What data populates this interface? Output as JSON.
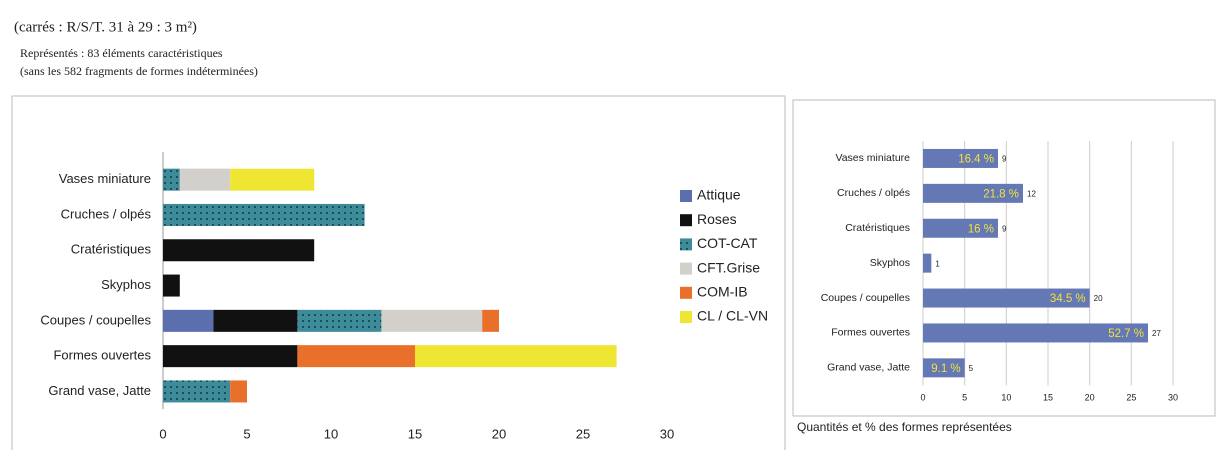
{
  "header": {
    "subtitle": "(carrés : R/S/T. 31 à 29 : 3 m²)",
    "note1": "Représentés : 83 éléments caractéristiques",
    "note2": "(sans les 582 fragments de formes indéterminées)"
  },
  "chart_data": [
    {
      "type": "stacked_bar_horizontal",
      "categories": [
        "Vases miniature",
        "Cruches / olpés",
        "Cratéristiques",
        "Skyphos",
        "Coupes / coupelles",
        "Formes ouvertes",
        "Grand vase, Jatte"
      ],
      "series": [
        {
          "name": "Attique",
          "color": "#5b6fae",
          "values": [
            0,
            0,
            0,
            0,
            3,
            0,
            0
          ]
        },
        {
          "name": "Roses",
          "color": "#111111",
          "values": [
            0,
            0,
            9,
            1,
            5,
            8,
            0
          ]
        },
        {
          "name": "COT-CAT",
          "color": "#3e8c9a",
          "pattern": "dots",
          "values": [
            1,
            12,
            0,
            0,
            5,
            0,
            4
          ]
        },
        {
          "name": "CFT.Grise",
          "color": "#d3cfcb",
          "values": [
            3,
            0,
            0,
            0,
            6,
            0,
            0
          ]
        },
        {
          "name": "COM-IB",
          "color": "#e8702a",
          "values": [
            0,
            0,
            0,
            0,
            1,
            7,
            1
          ]
        },
        {
          "name": "CL / CL-VN",
          "color": "#efe634",
          "values": [
            5,
            0,
            0,
            0,
            0,
            12,
            0
          ]
        }
      ],
      "xlim": [
        0,
        30
      ],
      "xticks": [
        0,
        5,
        10,
        15,
        20,
        25,
        30
      ],
      "grid": false,
      "legend": "right"
    },
    {
      "type": "bar_horizontal",
      "categories": [
        "Vases miniature",
        "Cruches / olpés",
        "Cratéristiques",
        "Skyphos",
        "Coupes / coupelles",
        "Formes ouvertes",
        "Grand vase, Jatte"
      ],
      "values": [
        9,
        12,
        9,
        1,
        20,
        27,
        5
      ],
      "percent_labels": [
        "16.4 %",
        "21.8 %",
        "16 %",
        null,
        "34.5 %",
        "52.7 %",
        "9.1 %"
      ],
      "color": "#6378b5",
      "label_color": "#f3e23a",
      "xlim": [
        0,
        30
      ],
      "xticks": [
        0,
        5,
        10,
        15,
        20,
        25,
        30
      ],
      "grid": true,
      "caption": "Quantités et % des formes représentées"
    }
  ]
}
